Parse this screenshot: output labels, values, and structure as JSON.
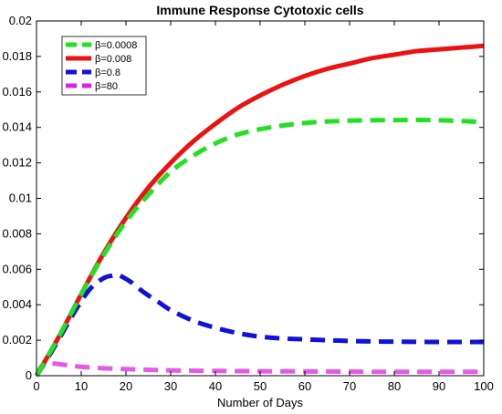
{
  "chart_data": {
    "type": "line",
    "title": "Immune Response Cytotoxic cells",
    "xlabel": "Number of Days",
    "ylabel": "",
    "xlim": [
      0,
      100
    ],
    "ylim": [
      0,
      0.02
    ],
    "xticks": [
      0,
      10,
      20,
      30,
      40,
      50,
      60,
      70,
      80,
      90,
      100
    ],
    "yticks": [
      0,
      0.002,
      0.004,
      0.006,
      0.008,
      0.01,
      0.012,
      0.014,
      0.016,
      0.018,
      0.02
    ],
    "ytick_labels": [
      "0",
      "0.002",
      "0.004",
      "0.006",
      "0.008",
      "0.01",
      "0.012",
      "0.014",
      "0.016",
      "0.018",
      "0.02"
    ],
    "legend_position": "top-left",
    "grid": false,
    "series": [
      {
        "name": "β=0.0008",
        "color": "#22e022",
        "style": "dashed",
        "x": [
          0,
          5,
          10,
          15,
          20,
          25,
          30,
          35,
          40,
          45,
          50,
          55,
          60,
          65,
          70,
          75,
          80,
          85,
          90,
          95,
          100
        ],
        "y": [
          0,
          0.0022,
          0.0046,
          0.0068,
          0.0087,
          0.0102,
          0.0115,
          0.0124,
          0.0131,
          0.0136,
          0.0139,
          0.0141,
          0.01425,
          0.01433,
          0.01438,
          0.0144,
          0.01441,
          0.01442,
          0.0144,
          0.01436,
          0.0143
        ]
      },
      {
        "name": "β=0.008",
        "color": "#ee1111",
        "style": "solid",
        "x": [
          0,
          5,
          10,
          15,
          20,
          25,
          30,
          35,
          40,
          45,
          50,
          55,
          60,
          65,
          70,
          75,
          80,
          85,
          90,
          95,
          100
        ],
        "y": [
          0,
          0.0022,
          0.0046,
          0.0069,
          0.0089,
          0.0106,
          0.012,
          0.0132,
          0.0142,
          0.0151,
          0.0158,
          0.0164,
          0.0169,
          0.0173,
          0.0176,
          0.0179,
          0.0181,
          0.0183,
          0.0184,
          0.0185,
          0.0186
        ]
      },
      {
        "name": "β=0.8",
        "color": "#1111dd",
        "style": "dashed",
        "x": [
          0,
          3,
          6,
          9,
          12,
          15,
          17,
          18,
          19,
          21,
          24,
          27,
          30,
          35,
          40,
          45,
          50,
          55,
          60,
          65,
          70,
          75,
          80,
          85,
          90,
          95,
          100
        ],
        "y": [
          0,
          0.0012,
          0.0025,
          0.0038,
          0.0049,
          0.0055,
          0.00565,
          0.0057,
          0.0056,
          0.0053,
          0.0047,
          0.0042,
          0.0037,
          0.0031,
          0.0027,
          0.0024,
          0.0022,
          0.0021,
          0.00205,
          0.002,
          0.00196,
          0.00193,
          0.00192,
          0.00191,
          0.0019,
          0.0019,
          0.0019
        ]
      },
      {
        "name": "β=80",
        "color": "#dd22dd",
        "style": "dashed",
        "x": [
          0,
          1,
          2,
          4,
          6,
          8,
          10,
          15,
          20,
          25,
          30,
          40,
          50,
          60,
          70,
          80,
          90,
          100
        ],
        "y": [
          0,
          0.0005,
          0.0007,
          0.00068,
          0.00062,
          0.00056,
          0.0005,
          0.00042,
          0.00037,
          0.00033,
          0.0003,
          0.00027,
          0.00025,
          0.00024,
          0.00023,
          0.00022,
          0.00022,
          0.00022
        ]
      }
    ]
  }
}
